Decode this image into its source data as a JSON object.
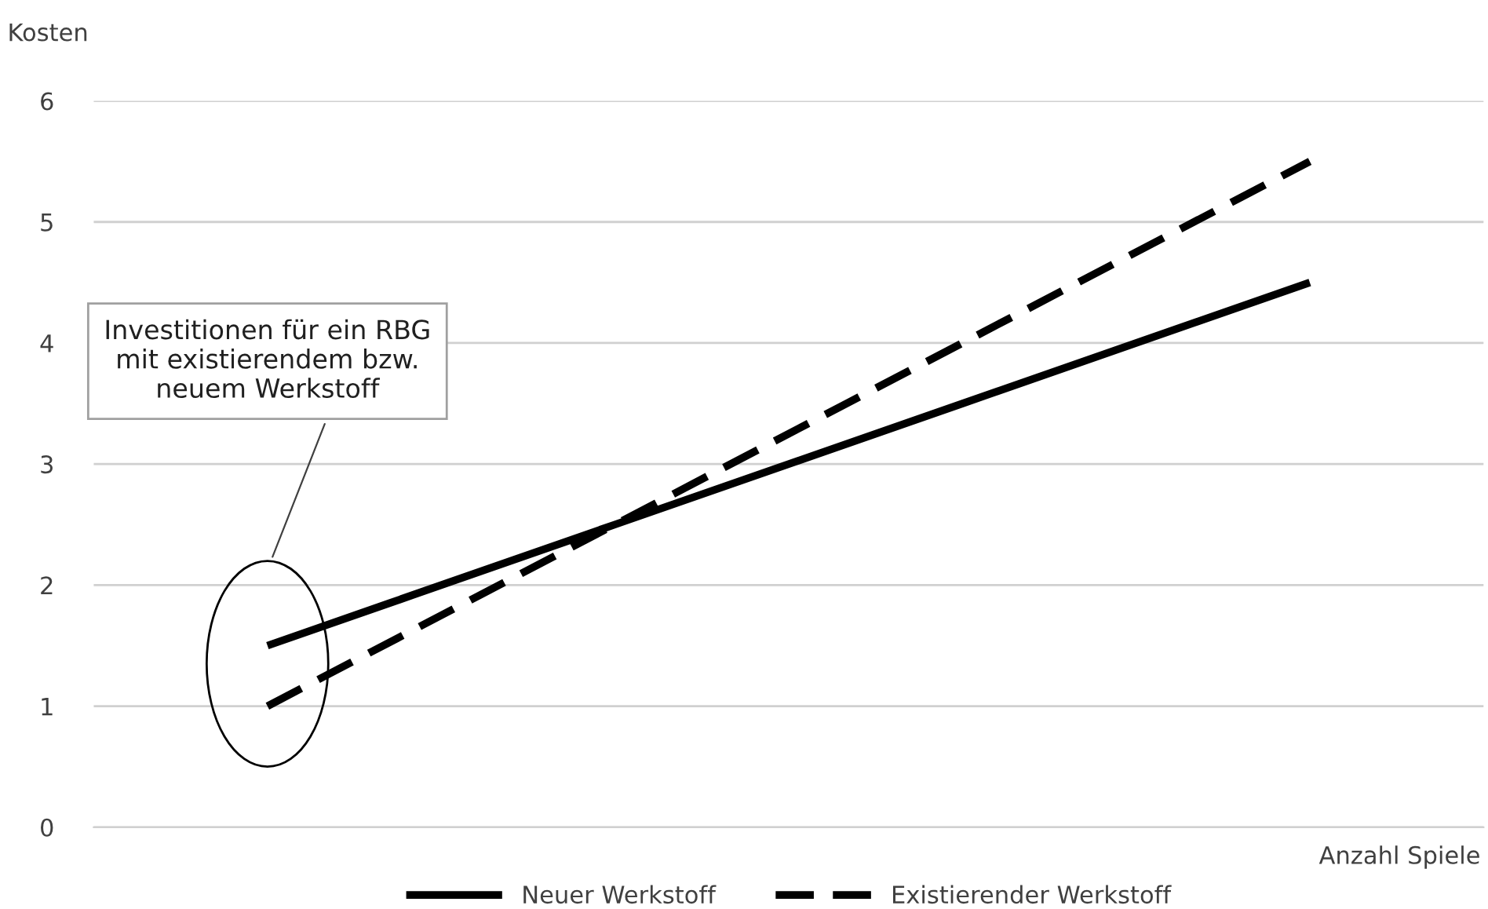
{
  "chart_data": {
    "type": "line",
    "xlabel": "Anzahl Spiele",
    "ylabel": "Kosten",
    "categories": [
      null,
      null,
      null,
      null
    ],
    "series": [
      {
        "name": "Neuer Werkstoff",
        "color": "#000000",
        "values": [
          1.5,
          2.5,
          3.5,
          4.5
        ],
        "line_style": "solid"
      },
      {
        "name": "Existierender Werkstoff",
        "color": "#000000",
        "values": [
          1.0,
          2.5,
          4.0,
          5.5
        ],
        "line_style": "dashed"
      }
    ],
    "ylim": [
      0,
      6
    ],
    "yticks": [
      0,
      1,
      2,
      3,
      4,
      5,
      6
    ],
    "grid": "y",
    "legend": "bottom",
    "marker": "none",
    "annotations": [
      "Investitionen für ein RBG\nmit existierendem bzw.\nneuem Werkstoff"
    ]
  }
}
